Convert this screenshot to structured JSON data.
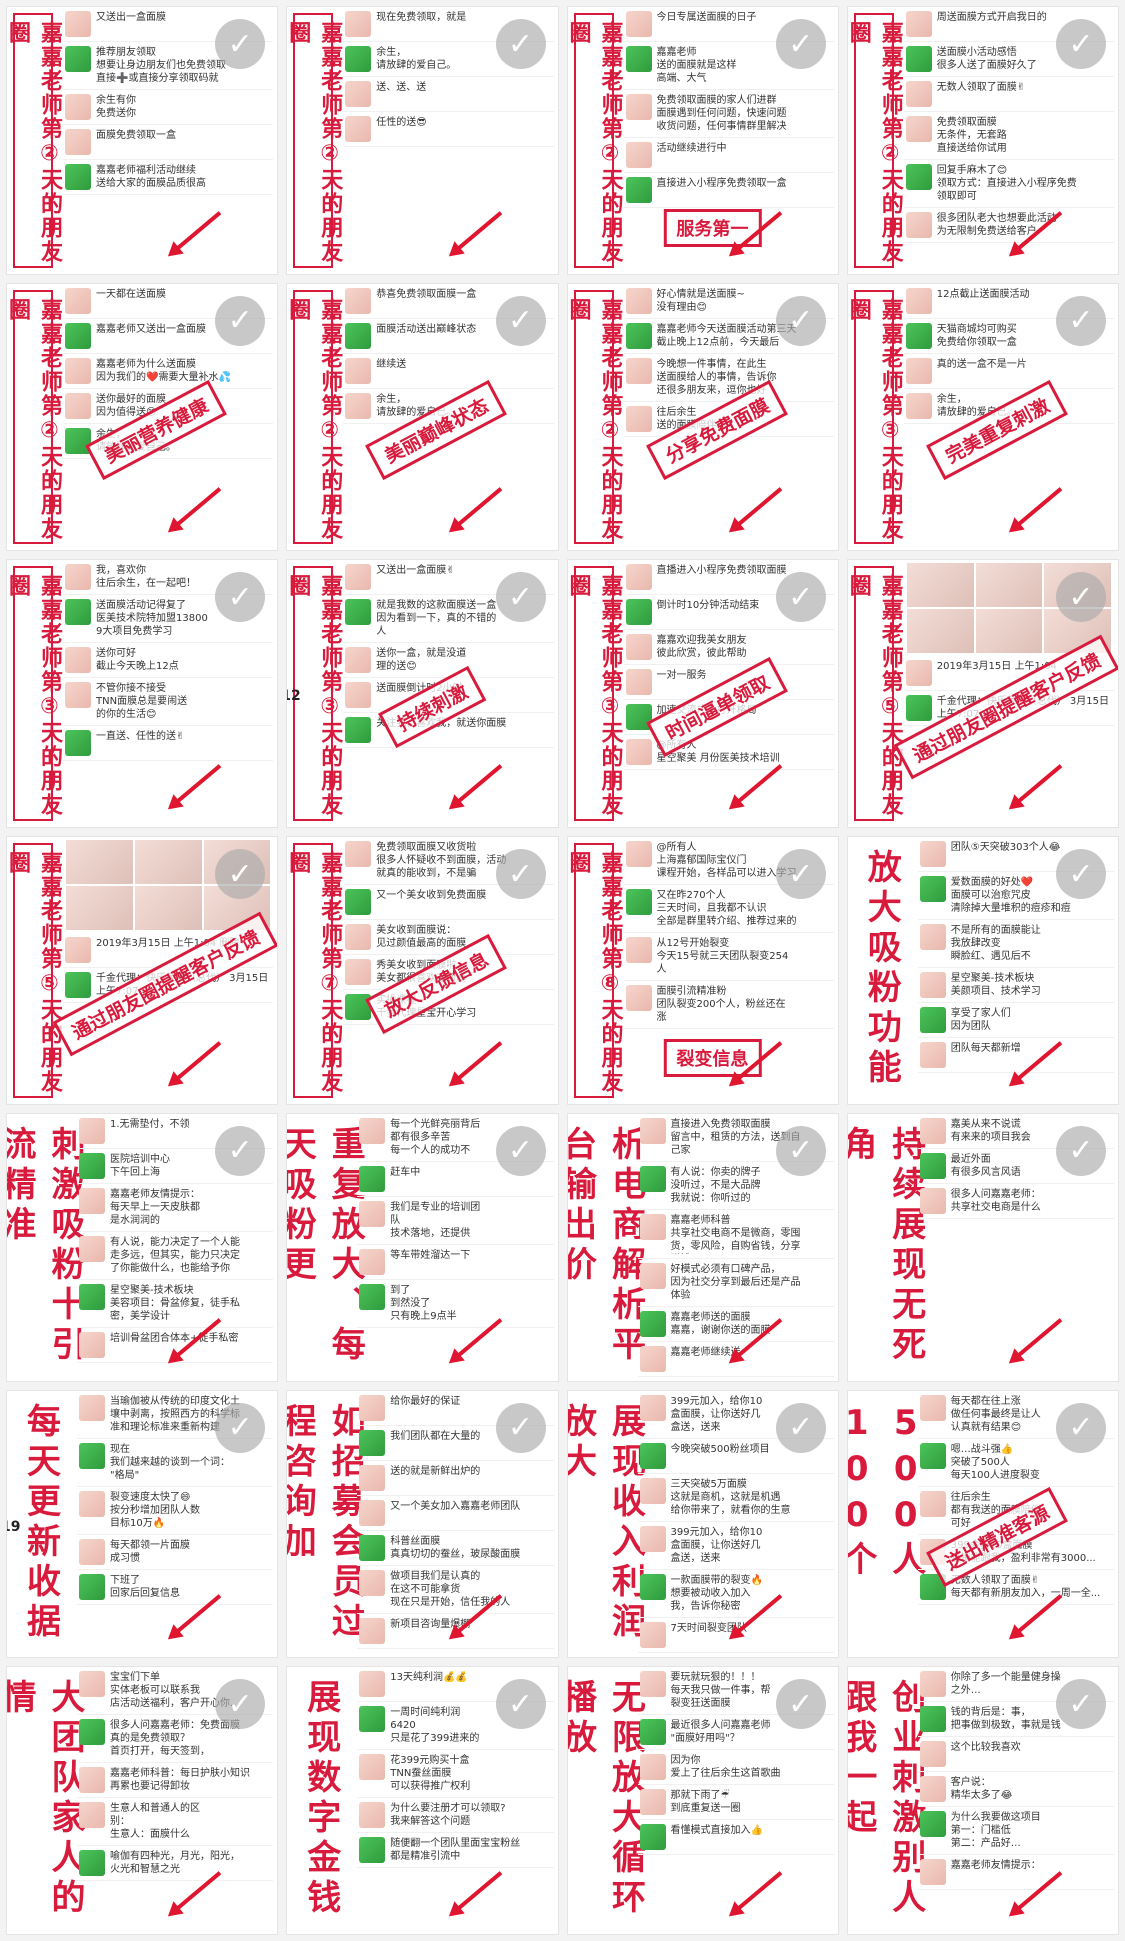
{
  "tiles": [
    {
      "caption": "嘉嘉老师第②天的朋友圈",
      "stamp": "",
      "posts": [
        "又送出一盒面膜",
        "推荐朋友领取\n想要让身边朋友们也免费领取\n直接➕或直接分享领取码就",
        "余生有你\n免费送你",
        "面膜免费领取一盒",
        "嘉嘉老师福利活动继续\n送给大家的面膜品质很高"
      ]
    },
    {
      "caption": "嘉嘉老师第②天的朋友圈",
      "stamp": "",
      "posts": [
        "现在免费领取，就是",
        "余生，\n请放肆的爱自己。",
        "送、送、送",
        "任性的送😎"
      ]
    },
    {
      "caption": "嘉嘉老师第②天的朋友圈",
      "stamp": "服务第一",
      "posts": [
        "今日专属送面膜的日子",
        "嘉嘉老师\n送的面膜就是这样\n高端、大气",
        "免费领取面膜的家人们进群\n面膜遇到任何问题，快速问题\n收货问题，任何事情群里解决",
        "活动继续进行中",
        "直接进入小程序免费领取一盒"
      ]
    },
    {
      "caption": "嘉嘉老师第②天的朋友圈",
      "stamp": "",
      "posts": [
        "周送面膜方式开启我日的",
        "送面膜小活动感悟\n很多人送了面膜好久了",
        "无数人领取了面膜✌",
        "免费领取面膜\n无条件，无套路\n直接送给你试用",
        "回复手麻木了😊\n领取方式：直接进入小程序免费\n领取即可",
        "很多团队老大也想要此活动\n为无限制免费送给客户"
      ]
    },
    {
      "caption": "嘉嘉老师第②天的朋友圈",
      "stamp": "美丽营养健康",
      "posts": [
        "一天都在送面膜",
        "嘉嘉老师又送出一盒面膜",
        "嘉嘉老师为什么送面膜\n因为我们的❤️需要大量补水💦",
        "送你最好的面膜\n因为值得送😊",
        "余生，\n请放肆的爱自己。"
      ]
    },
    {
      "caption": "嘉嘉老师第②天的朋友圈",
      "stamp": "美丽巅峰状态",
      "posts": [
        "恭喜免费领取面膜一盒",
        "面膜活动送出巅峰状态",
        "继续送",
        "余生，\n请放肆的爱自己。"
      ]
    },
    {
      "caption": "嘉嘉老师第②天的朋友圈",
      "stamp": "分享免费面膜",
      "posts": [
        "好心情就是送面膜~\n没有理由😊",
        "嘉嘉老师今天送面膜活动第三天\n截止晚上12点前，今天最后",
        "今晚想一件事情，在此生\n送面膜给人的事情，告诉你\n还很多朋友来，逗你也好",
        "往后余生\n送的面膜陪伴你✌"
      ]
    },
    {
      "caption": "嘉嘉老师第③天的朋友圈",
      "stamp": "完美重复刺激",
      "posts": [
        "12点截止送面膜活动",
        "天猫商城均可购买\n免费给你领取一盒",
        "真的送一盒不是一片",
        "余生，\n请放肆的爱自己。"
      ]
    },
    {
      "caption": "嘉嘉老师第③天的朋友圈",
      "stamp": "",
      "posts": [
        "我，喜欢你\n往后余生，在一起吧！",
        "送面膜活动记得复了\n医美技术院特加盟13800\n9大项目免费学习",
        "送你可好\n截止今天晚上12点",
        "不管你接不接受\nTNN面膜总是要闹送\n的你的生活😊",
        "一直送、任性的送✌"
      ]
    },
    {
      "caption": "嘉嘉老师第③天的朋友圈",
      "stamp": "持续刺激",
      "posts": [
        "又送出一盒面膜✌",
        "就是我数的这款面膜送一盒\n因为看到一下，真的不错的\n人",
        "送你一盒，就是没道\n理的送😊",
        "送面膜倒计时2小时",
        "关注我，喜欢我，就送你面膜"
      ]
    },
    {
      "caption": "嘉嘉老师第③天的朋友圈",
      "stamp": "时间逼单领取",
      "posts": [
        "直播进入小程序免费领取面膜",
        "倒计时10分钟活动结束",
        "嘉嘉欢迎我美女朋友\n彼此欣赏，彼此帮助",
        "一对一服务",
        "加速交流才能打开格局",
        "@所有人\n星空聚美 月份医美技术培训"
      ]
    },
    {
      "caption": "嘉嘉老师第⑤天的朋友圈",
      "stamp": "通过朋友圈提醒客户反馈",
      "posts": [
        "2019年3月15日 上午1:04",
        "千金代理：快乐茉莉（总代）  3月15日 上午7:07"
      ]
    },
    {
      "caption": "嘉嘉老师第⑤天的朋友圈",
      "stamp": "通过朋友圈提醒客户反馈",
      "posts": [
        "2019年3月15日 上午1:04  删除",
        "千金代理：快乐茉莉（总代）  3月15日 上午7:07"
      ]
    },
    {
      "caption": "嘉嘉老师第⑦天的朋友圈",
      "stamp": "放大反馈信息",
      "posts": [
        "免费领取面膜又收货啦\n很多人怀疑收不到面膜，活动\n就真的能收到，不是骗",
        "又一个美女收到免费面膜",
        "美女收到面膜说：\n见过颜值最高的面膜",
        "秀美女收到面膜啦\n美女都很喜欢这面膜",
        "实操课程\n千金代理星宝开心学习"
      ]
    },
    {
      "caption": "嘉嘉老师第⑧天的朋友圈",
      "stamp": "裂变信息",
      "posts": [
        "@所有人\n上海嘉郁国际宝仪门\n课程开始，各样品可以进入学习",
        "又在昨270个人\n三天时间，且我都不认识\n全部是群里转介绍、推荐过来的",
        "从12号开始裂变\n今天15号就三天团队裂变254\n人",
        "面膜引流精准粉\n团队裂变200个人，粉丝还在\n涨"
      ]
    },
    {
      "caption": "放大吸粉功能",
      "stamp": "",
      "posts": [
        "团队⑤天突破303个人😂",
        "爱数面膜的好处❤️\n面膜可以治愈咒皮\n清除掉大量堆积的痘疹和痘",
        "不是所有的面膜能让\n我放肆改变\n瞬脸红、遇见后不",
        "星空聚美-技术板块\n美颜项目、技术学习",
        "享受了家人们\n因为团队",
        "团队每天都新增"
      ]
    },
    {
      "caption": "刺激吸粉十引流精准",
      "stamp": "",
      "posts": [
        "1.无需垫付，不领",
        "医院培训中心\n下午回上海",
        "嘉嘉老师友情提示：\n每天早上一天皮肤都\n是水润润的",
        "有人说，能力决定了一个人能\n走多远，但其实，能力只决定\n了你能做什么，也能给予你",
        "星空聚美-技术板块\n美容项目：骨盆修复，徒手私\n密，美学设计",
        "培训骨盆团合体本+徒手私密"
      ]
    },
    {
      "caption": "重复放大、每天吸粉更",
      "stamp": "",
      "posts": [
        "每一个光鲜亮丽背后\n都有很多辛苦\n每一个人的成功不",
        "赶车中",
        "我们是专业的培训团\n队\n技术落地，还提供",
        "等车带姓溜达一下",
        "到了\n到然没了\n只有晚上9点半"
      ]
    },
    {
      "caption": "析电商解析平台输出价",
      "stamp": "",
      "posts": [
        "直接进入免费领取面膜\n留言中，租赁的方法，送到自\n己家",
        "有人说：你卖的牌子\n没听过，不是大品牌\n我就说：你听过的",
        "嘉嘉老师科普\n共享社交电商不是微商，零囤\n货，零风险，自购省钱，分享\n赚钱",
        "好模式必须有口碑产品，\n因为社交分享到最后还是产品\n体验",
        "嘉嘉老师送的面膜\n嘉嘉，谢谢你送的面膜",
        "嘉嘉老师继续送"
      ]
    },
    {
      "caption": "持续展现无死角",
      "stamp": "",
      "posts": [
        "嘉美从来不说谎\n有来来的项目我会",
        "最近外面\n有很多风言风语",
        "很多人问嘉嘉老师：\n共享社交电商是什么"
      ]
    },
    {
      "caption": "每天更新收据",
      "stamp": "",
      "posts": [
        "当瑜伽被从传统的印度文化土\n壤中剥离，按照西方的科学标\n准和理论标准来重新构建",
        "现在\n我们越来越的谈到一个词：\n\"格局\"",
        "裂变速度太快了😄\n按分秒增加团队人数\n目标10万🔥",
        "每天都领一片面膜\n成习惯",
        "下班了\n回家后回复信息"
      ]
    },
    {
      "caption": "如招募会员过程咨询加",
      "stamp": "",
      "posts": [
        "给你最好的保证",
        "我们团队都在大量的",
        "送的就是新鲜出炉的",
        "又一个美女加入嘉嘉老师团队",
        "科普丝面膜\n真真切切的蚕丝，玻尿酸面膜",
        "做项目我们是认真的\n在这不可能拿货\n现在只是开始，信任我的人",
        "新项目咨询量爆棚"
      ]
    },
    {
      "caption": "展现收入利润放大",
      "stamp": "",
      "posts": [
        "399元加入，给你10\n盒面膜，让你送好几\n盒送，送来",
        "今晚突破500粉丝项目",
        "三天突破5万面膜\n这就是商机，这就是机遇\n给你带来了，就看你的生意",
        "399元加入，给你10\n盒面膜，让你送好几\n盒送，送来",
        "一款面膜带的裂变🔥\n想要被动收入加入\n我，告诉你秘密",
        "7天时间裂变团队"
      ]
    },
    {
      "caption": "500人100个",
      "stamp": "送出精准客源",
      "posts": [
        "每天都在往上涨\n做任何事最终是让人\n认真就有结果😊",
        "嗯…战斗强👍\n突破了500人\n每天100人进度裂变",
        "往后余生\n都有我送的面膜陪伴\n可好",
        "399会员10盒面膜\n直销能跟我，盈利非常有3000...",
        "无数人领取了面膜✌\n每天都有新朋友加入，一周一全..."
      ]
    },
    {
      "caption": "大团队家人的情",
      "stamp": "",
      "posts": [
        "宝宝们下单\n实体老板可以联系我\n店活动送福利，客户开心你...",
        "很多人问嘉嘉老师：免费面膜\n真的是免费领取？\n首页打开，每天签到，",
        "嘉嘉老师科普：每日护肤小知识\n再累也要记得卸妆",
        "生意人和普通人的区\n别：\n生意人：面膜什么",
        "喻伽有四种光，月光，阳光，\n火光和智慧之光"
      ]
    },
    {
      "caption": "展现数字金钱",
      "stamp": "",
      "posts": [
        "13天纯利润💰💰",
        "一周时间纯利润\n6420\n只是花了399进来的",
        "花399元购买十盒\nTNN蚕丝面膜\n可以获得推广权利",
        "为什么要注册才可以领取?\n我来解答这个问题",
        "随便翻一个团队里面宝宝粉丝\n都是精准引流中"
      ]
    },
    {
      "caption": "无限放大循环播放",
      "stamp": "",
      "posts": [
        "要玩就玩狠的！！！\n每天我只做一件事，帮\n裂变狂送面膜",
        "最近很多人问嘉嘉老师\n\"面膜好用吗\"？",
        "因为你\n爱上了往后余生这首歌曲",
        "那就下雨了☔\n到底重复送一圈",
        "看懂模式直接加入👍"
      ]
    },
    {
      "caption": "创业刺激别人跟我一起",
      "stamp": "",
      "posts": [
        "你除了多一个能量健身操\n之外…",
        "钱的背后是：事，\n把事做到极致，事就是钱\n",
        "这个比较我喜欢",
        "客户说：\n精华太多了😂",
        "为什么我要做这项目\n第一：门槛低\n第二：产品好…",
        "嘉嘉老师友情提示："
      ]
    }
  ],
  "ui": {
    "check_glyph": "✓",
    "page_marks": [
      "12",
      "19"
    ]
  },
  "colors": {
    "accent": "#d81b3c",
    "arrow": "#e0152f",
    "wechat_green": "#3cb94a"
  }
}
